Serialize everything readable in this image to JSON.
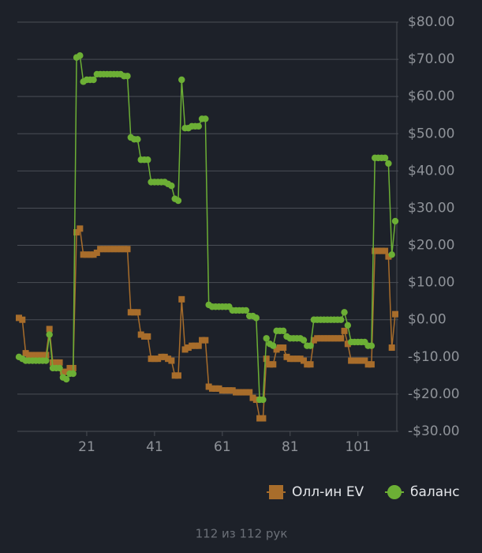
{
  "chart_data": {
    "type": "line",
    "x": [
      1,
      2,
      3,
      4,
      5,
      6,
      7,
      8,
      9,
      10,
      11,
      12,
      13,
      14,
      15,
      16,
      17,
      18,
      19,
      20,
      21,
      22,
      23,
      24,
      25,
      26,
      27,
      28,
      29,
      30,
      31,
      32,
      33,
      34,
      35,
      36,
      37,
      38,
      39,
      40,
      41,
      42,
      43,
      44,
      45,
      46,
      47,
      48,
      49,
      50,
      51,
      52,
      53,
      54,
      55,
      56,
      57,
      58,
      59,
      60,
      61,
      62,
      63,
      64,
      65,
      66,
      67,
      68,
      69,
      70,
      71,
      72,
      73,
      74,
      75,
      76,
      77,
      78,
      79,
      80,
      81,
      82,
      83,
      84,
      85,
      86,
      87,
      88,
      89,
      90,
      91,
      92,
      93,
      94,
      95,
      96,
      97,
      98,
      99,
      100,
      101,
      102,
      103,
      104,
      105,
      106,
      107,
      108,
      109,
      110,
      111,
      112
    ],
    "series": [
      {
        "name": "Олл-ин EV",
        "color": "#a86d2b",
        "marker": "square",
        "values": [
          0.5,
          0,
          -9,
          -9.5,
          -9.5,
          -9.5,
          -9.5,
          -9.5,
          -9.5,
          -2.5,
          -11.5,
          -11.5,
          -11.5,
          -14,
          -14,
          -13,
          -13,
          23.5,
          24.5,
          17.5,
          17.5,
          17.5,
          17.5,
          18,
          19,
          19,
          19,
          19,
          19,
          19,
          19,
          19,
          19,
          2,
          2,
          2,
          -4,
          -4.5,
          -4.5,
          -10.5,
          -10.5,
          -10.5,
          -10,
          -10,
          -10.5,
          -11,
          -15,
          -15,
          5.5,
          -8,
          -7.5,
          -7,
          -7,
          -7,
          -5.5,
          -5.5,
          -18,
          -18.5,
          -18.5,
          -18.5,
          -19,
          -19,
          -19,
          -19,
          -19.5,
          -19.5,
          -19.5,
          -19.5,
          -19.5,
          -21,
          -21.5,
          -26.5,
          -26.5,
          -10.5,
          -12,
          -12,
          -8,
          -7.5,
          -7.5,
          -10,
          -10.5,
          -10.5,
          -10.5,
          -10.5,
          -11,
          -12,
          -12,
          -5.5,
          -5,
          -5,
          -5,
          -5,
          -5,
          -5,
          -5,
          -5,
          -3,
          -6.5,
          -11,
          -11,
          -11,
          -11,
          -11,
          -12,
          -12,
          18.5,
          18.5,
          18.5,
          18.5,
          17,
          -7.5,
          1.5
        ]
      },
      {
        "name": "баланс",
        "color": "#6caf35",
        "marker": "circle",
        "values": [
          -10,
          -10.5,
          -11,
          -11,
          -11,
          -11,
          -11,
          -11,
          -11,
          -4,
          -13,
          -13,
          -13,
          -15.5,
          -16,
          -14.5,
          -14.5,
          70.5,
          71,
          64,
          64.5,
          64.5,
          64.5,
          66,
          66,
          66,
          66,
          66,
          66,
          66,
          66,
          65.5,
          65.5,
          49,
          48.5,
          48.5,
          43,
          43,
          43,
          37,
          37,
          37,
          37,
          37,
          36.5,
          36,
          32.5,
          32,
          64.5,
          51.5,
          51.5,
          52,
          52,
          52,
          54,
          54,
          4,
          3.5,
          3.5,
          3.5,
          3.5,
          3.5,
          3.5,
          2.5,
          2.5,
          2.5,
          2.5,
          2.5,
          1,
          1,
          0.5,
          -21.5,
          -21.5,
          -5,
          -6.5,
          -7,
          -3,
          -3,
          -3,
          -4.5,
          -5,
          -5,
          -5,
          -5,
          -5.5,
          -7,
          -7,
          0,
          0,
          0,
          0,
          0,
          0,
          0,
          0,
          0,
          2,
          -1.5,
          -6,
          -6,
          -6,
          -6,
          -6,
          -7,
          -7,
          43.5,
          43.5,
          43.5,
          43.5,
          42,
          17.5,
          26.5
        ]
      }
    ],
    "xlim": [
      1,
      112
    ],
    "xticks": [
      21,
      41,
      61,
      81,
      101
    ],
    "ylim": [
      -30,
      80
    ],
    "yticks": [
      {
        "value": -30,
        "label": "-$30.00"
      },
      {
        "value": -20,
        "label": "-$20.00"
      },
      {
        "value": -10,
        "label": "-$10.00"
      },
      {
        "value": 0,
        "label": "$0.00"
      },
      {
        "value": 10,
        "label": "$10.00"
      },
      {
        "value": 20,
        "label": "$20.00"
      },
      {
        "value": 30,
        "label": "$30.00"
      },
      {
        "value": 40,
        "label": "$40.00"
      },
      {
        "value": 50,
        "label": "$50.00"
      },
      {
        "value": 60,
        "label": "$60.00"
      },
      {
        "value": 70,
        "label": "$70.00"
      },
      {
        "value": 80,
        "label": "$80.00"
      }
    ],
    "grid": true
  },
  "footer": "112 из 112 рук"
}
